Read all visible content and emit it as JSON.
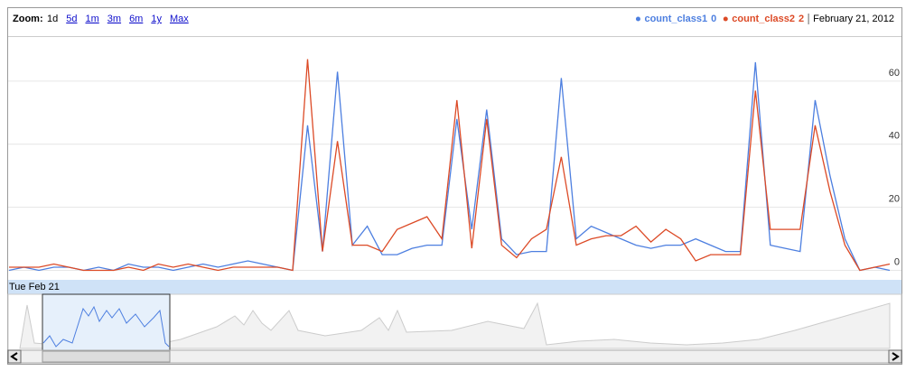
{
  "chart_data": {
    "type": "line",
    "zoom_label": "Zoom:",
    "zoom_options": [
      "1d",
      "5d",
      "1m",
      "3m",
      "6m",
      "1y",
      "Max"
    ],
    "date": "February 21, 2012",
    "range_label": "Tue Feb 21",
    "categories": [
      null,
      null,
      null,
      null,
      null,
      null,
      null,
      null,
      null,
      null,
      null,
      null,
      null,
      null,
      null,
      null,
      null,
      null,
      null,
      null,
      null,
      null,
      null,
      null,
      null,
      null,
      null,
      null,
      null,
      null,
      null,
      null,
      null,
      null,
      null,
      null,
      null,
      null,
      null,
      null,
      null,
      null,
      null,
      null,
      null,
      null,
      null,
      null,
      null,
      null,
      null,
      null,
      null,
      null,
      null,
      null,
      null,
      null,
      null,
      null
    ],
    "series": [
      {
        "name": "count_class1",
        "color": "#4d7fe0",
        "values": [
          0,
          1,
          0,
          1,
          1,
          0,
          1,
          0,
          2,
          1,
          1,
          0,
          1,
          2,
          1,
          2,
          3,
          2,
          1,
          0,
          46,
          6,
          63,
          8,
          14,
          5,
          5,
          7,
          8,
          8,
          48,
          13,
          51,
          10,
          5,
          6,
          6,
          61,
          10,
          14,
          12,
          10,
          8,
          7,
          8,
          8,
          10,
          8,
          6,
          6,
          66,
          8,
          7,
          6,
          54,
          30,
          10,
          0,
          1,
          0
        ]
      },
      {
        "name": "count_class2",
        "color": "#dc4a26",
        "values": [
          1,
          1,
          1,
          2,
          1,
          0,
          0,
          0,
          1,
          0,
          2,
          1,
          2,
          1,
          0,
          1,
          1,
          1,
          1,
          0,
          67,
          6,
          41,
          8,
          8,
          6,
          13,
          15,
          17,
          10,
          54,
          7,
          48,
          8,
          4,
          10,
          13,
          36,
          8,
          10,
          11,
          11,
          14,
          9,
          13,
          10,
          3,
          5,
          5,
          5,
          57,
          13,
          13,
          13,
          46,
          25,
          8,
          0,
          1,
          2
        ]
      }
    ],
    "ylim": [
      -3,
      74
    ],
    "yticks": [
      0,
      20,
      40,
      60
    ],
    "grid": true
  }
}
